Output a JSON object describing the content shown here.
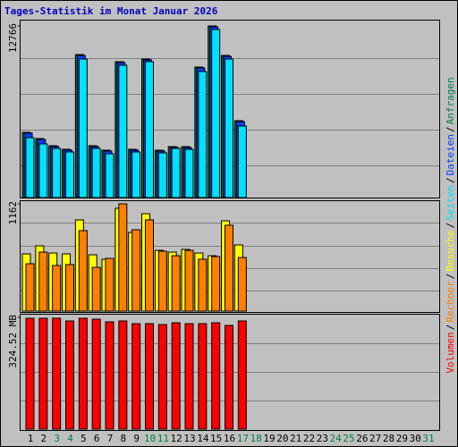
{
  "chart_data": [
    {
      "type": "bar",
      "title": "Tages-Statistik im Monat Januar 2026",
      "ylim": [
        0,
        12766
      ],
      "yticks": [
        12766
      ],
      "series": [
        {
          "name": "Anfragen",
          "color": "#008040",
          "values": [
            4854,
            4388,
            3856,
            3590,
            10638,
            3856,
            3524,
            10106,
            3590,
            10306,
            3524,
            3790,
            3790,
            9707,
            12766,
            10572,
            5718,
            null,
            null,
            null,
            null,
            null,
            null,
            null,
            null,
            null,
            null,
            null,
            null,
            null,
            null
          ]
        },
        {
          "name": "Dateien",
          "color": "#0040ff",
          "values": [
            4790,
            4320,
            3800,
            3530,
            10570,
            3790,
            3460,
            10040,
            3530,
            10240,
            3460,
            3730,
            3720,
            9640,
            12700,
            10500,
            5650,
            null,
            null,
            null,
            null,
            null,
            null,
            null,
            null,
            null,
            null,
            null,
            null,
            null,
            null
          ]
        },
        {
          "name": "Seiten",
          "color": "#00e0ff",
          "values": [
            4455,
            3989,
            3657,
            3391,
            10306,
            3657,
            3258,
            9840,
            3391,
            10106,
            3324,
            3657,
            3590,
            9375,
            12500,
            10306,
            5319,
            null,
            null,
            null,
            null,
            null,
            null,
            null,
            null,
            null,
            null,
            null,
            null,
            null,
            null
          ]
        }
      ]
    },
    {
      "type": "bar",
      "ylim": [
        0,
        1162
      ],
      "yticks": [
        1162
      ],
      "series": [
        {
          "name": "Besuche",
          "color": "#ffff00",
          "values": [
            620,
            707,
            629,
            620,
            988,
            610,
            562,
            1114,
            852,
            1055,
            658,
            639,
            668,
            629,
            600,
            978,
            717,
            null,
            null,
            null,
            null,
            null,
            null,
            null,
            null,
            null,
            null,
            null,
            null,
            null,
            null
          ]
        },
        {
          "name": "Rechner",
          "color": "#ff8000",
          "values": [
            513,
            639,
            494,
            504,
            872,
            474,
            571,
            1162,
            881,
            988,
            649,
            600,
            658,
            562,
            591,
            930,
            581,
            null,
            null,
            null,
            null,
            null,
            null,
            null,
            null,
            null,
            null,
            null,
            null,
            null,
            null
          ]
        }
      ]
    },
    {
      "type": "bar",
      "ylim": [
        0,
        324.52
      ],
      "yticks": [
        {
          "value": 324.52,
          "label": "324.52 MB"
        }
      ],
      "categories": [
        "1",
        "2",
        "3",
        "4",
        "5",
        "6",
        "7",
        "8",
        "9",
        "10",
        "11",
        "12",
        "13",
        "14",
        "15",
        "16",
        "17",
        "18",
        "19",
        "20",
        "21",
        "22",
        "23",
        "24",
        "25",
        "26",
        "27",
        "28",
        "29",
        "30",
        "31"
      ],
      "category_colors": [
        "#000000",
        "#000000",
        "#008040",
        "#008040",
        "#000000",
        "#000000",
        "#000000",
        "#000000",
        "#000000",
        "#008040",
        "#008040",
        "#000000",
        "#000000",
        "#000000",
        "#000000",
        "#000000",
        "#008040",
        "#008040",
        "#000000",
        "#000000",
        "#000000",
        "#000000",
        "#000000",
        "#008040",
        "#008040",
        "#000000",
        "#000000",
        "#000000",
        "#000000",
        "#000000",
        "#008040"
      ],
      "separator": "/",
      "series": [
        {
          "name": "Volumen",
          "color": "#ff0000",
          "values": [
            321.9,
            321.9,
            321.9,
            314.1,
            321.9,
            319.3,
            311.5,
            314.1,
            306.3,
            306.3,
            303.7,
            308.9,
            306.3,
            306.3,
            308.9,
            301.2,
            314.1,
            null,
            null,
            null,
            null,
            null,
            null,
            null,
            null,
            null,
            null,
            null,
            null,
            null,
            null
          ]
        }
      ]
    }
  ]
}
